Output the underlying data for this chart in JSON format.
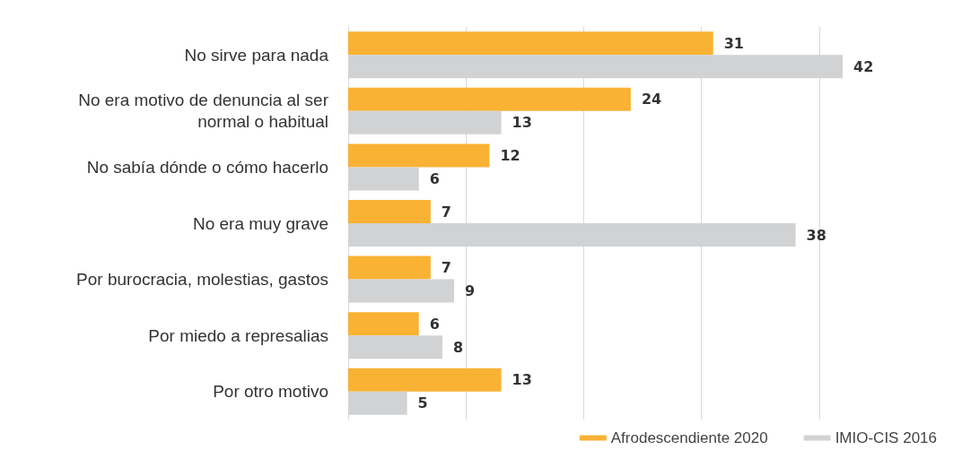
{
  "chart_data": {
    "type": "bar",
    "orientation": "horizontal",
    "categories": [
      "No sirve para nada",
      "No era motivo de denuncia al ser\nnormal o habitual",
      "No sabía dónde o cómo hacerlo",
      "No era muy grave",
      "Por burocracia, molestias, gastos",
      "Por miedo a represalias",
      "Por otro motivo"
    ],
    "series": [
      {
        "name": "Afrodescendiente 2020",
        "color": "#f9b233",
        "values": [
          31,
          24,
          12,
          7,
          7,
          6,
          13
        ]
      },
      {
        "name": "IMIO-CIS 2016",
        "color": "#d1d2d4",
        "values": [
          42,
          13,
          6,
          38,
          9,
          8,
          5
        ]
      }
    ],
    "xticks": [
      {
        "value": 0,
        "label": null
      },
      {
        "value": 10,
        "label": null
      },
      {
        "value": 20,
        "label": null
      },
      {
        "value": 30,
        "label": null
      },
      {
        "value": 40,
        "label": null
      }
    ],
    "tick_labels": "y",
    "grid": "x",
    "legend": "bottom right",
    "data_labels": true
  }
}
